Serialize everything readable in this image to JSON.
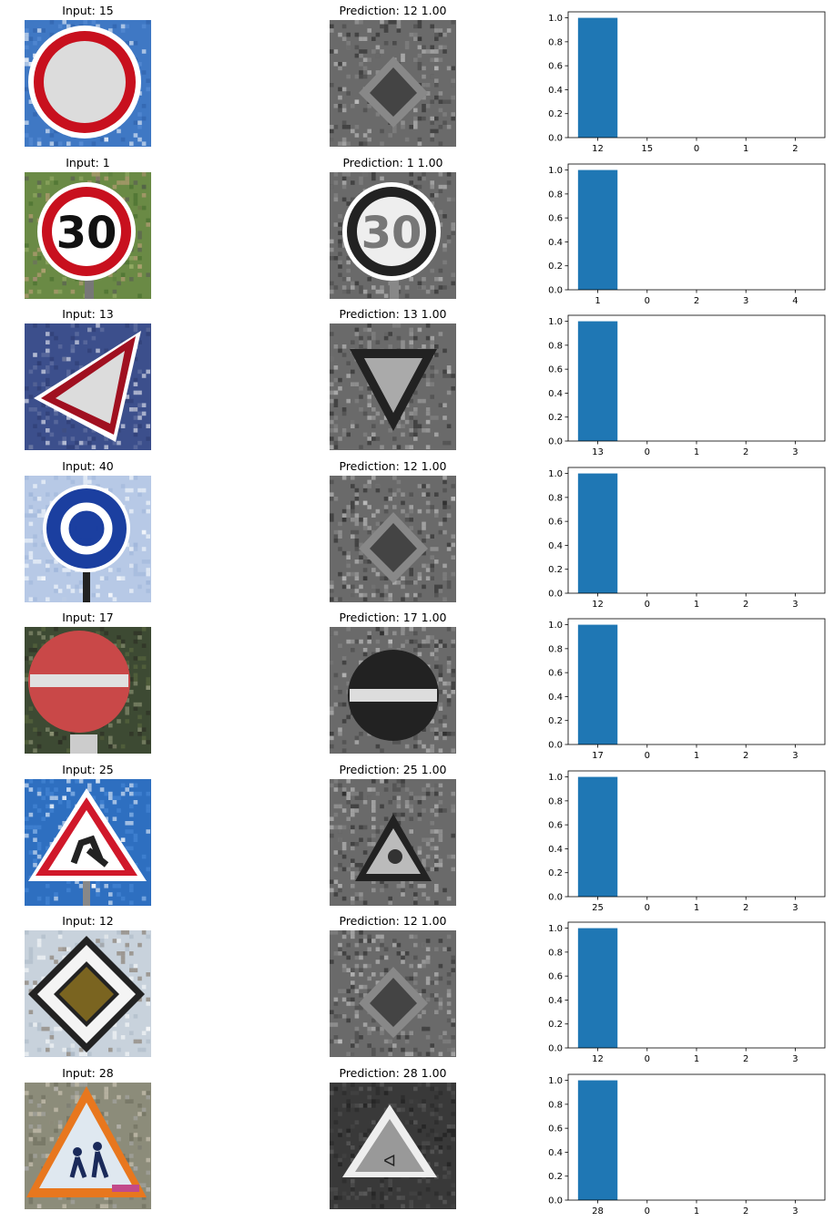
{
  "bar_color": "#1f77b4",
  "rows": [
    {
      "input_title": "Input: 15",
      "pred_title": "Prediction: 12  1.00",
      "input_icon": "no-vehicles-sign",
      "pred_icon": "priority-road-sign-grayscale"
    },
    {
      "input_title": "Input: 1",
      "pred_title": "Prediction: 1  1.00",
      "input_icon": "speed-limit-30-sign",
      "pred_icon": "speed-limit-30-sign-grayscale"
    },
    {
      "input_title": "Input: 13",
      "pred_title": "Prediction: 13  1.00",
      "input_icon": "yield-sign",
      "pred_icon": "yield-sign-grayscale"
    },
    {
      "input_title": "Input: 40",
      "pred_title": "Prediction: 12  1.00",
      "input_icon": "roundabout-sign",
      "pred_icon": "priority-road-sign-grayscale"
    },
    {
      "input_title": "Input: 17",
      "pred_title": "Prediction: 17  1.00",
      "input_icon": "no-entry-sign",
      "pred_icon": "no-entry-sign-grayscale"
    },
    {
      "input_title": "Input: 25",
      "pred_title": "Prediction: 25  1.00",
      "input_icon": "road-work-sign",
      "pred_icon": "road-work-sign-grayscale"
    },
    {
      "input_title": "Input: 12",
      "pred_title": "Prediction: 12  1.00",
      "input_icon": "priority-road-sign",
      "pred_icon": "priority-road-sign-grayscale"
    },
    {
      "input_title": "Input: 28",
      "pred_title": "Prediction: 28  1.00",
      "input_icon": "children-crossing-sign",
      "pred_icon": "children-crossing-sign-grayscale"
    }
  ],
  "chart_data": [
    {
      "type": "bar",
      "categories": [
        "12",
        "15",
        "0",
        "1",
        "2"
      ],
      "values": [
        1.0,
        0,
        0,
        0,
        0
      ],
      "ylim": [
        0,
        1.05
      ],
      "yticks": [
        "0.0",
        "0.2",
        "0.4",
        "0.6",
        "0.8",
        "1.0"
      ]
    },
    {
      "type": "bar",
      "categories": [
        "1",
        "0",
        "2",
        "3",
        "4"
      ],
      "values": [
        1.0,
        0,
        0,
        0,
        0
      ],
      "ylim": [
        0,
        1.05
      ],
      "yticks": [
        "0.0",
        "0.2",
        "0.4",
        "0.6",
        "0.8",
        "1.0"
      ]
    },
    {
      "type": "bar",
      "categories": [
        "13",
        "0",
        "1",
        "2",
        "3"
      ],
      "values": [
        1.0,
        0,
        0,
        0,
        0
      ],
      "ylim": [
        0,
        1.05
      ],
      "yticks": [
        "0.0",
        "0.2",
        "0.4",
        "0.6",
        "0.8",
        "1.0"
      ]
    },
    {
      "type": "bar",
      "categories": [
        "12",
        "0",
        "1",
        "2",
        "3"
      ],
      "values": [
        1.0,
        0,
        0,
        0,
        0
      ],
      "ylim": [
        0,
        1.05
      ],
      "yticks": [
        "0.0",
        "0.2",
        "0.4",
        "0.6",
        "0.8",
        "1.0"
      ]
    },
    {
      "type": "bar",
      "categories": [
        "17",
        "0",
        "1",
        "2",
        "3"
      ],
      "values": [
        1.0,
        0,
        0,
        0,
        0
      ],
      "ylim": [
        0,
        1.05
      ],
      "yticks": [
        "0.0",
        "0.2",
        "0.4",
        "0.6",
        "0.8",
        "1.0"
      ]
    },
    {
      "type": "bar",
      "categories": [
        "25",
        "0",
        "1",
        "2",
        "3"
      ],
      "values": [
        1.0,
        0,
        0,
        0,
        0
      ],
      "ylim": [
        0,
        1.05
      ],
      "yticks": [
        "0.0",
        "0.2",
        "0.4",
        "0.6",
        "0.8",
        "1.0"
      ]
    },
    {
      "type": "bar",
      "categories": [
        "12",
        "0",
        "1",
        "2",
        "3"
      ],
      "values": [
        1.0,
        0,
        0,
        0,
        0
      ],
      "ylim": [
        0,
        1.05
      ],
      "yticks": [
        "0.0",
        "0.2",
        "0.4",
        "0.6",
        "0.8",
        "1.0"
      ]
    },
    {
      "type": "bar",
      "categories": [
        "28",
        "0",
        "1",
        "2",
        "3"
      ],
      "values": [
        1.0,
        0,
        0,
        0,
        0
      ],
      "ylim": [
        0,
        1.05
      ],
      "yticks": [
        "0.0",
        "0.2",
        "0.4",
        "0.6",
        "0.8",
        "1.0"
      ]
    }
  ]
}
